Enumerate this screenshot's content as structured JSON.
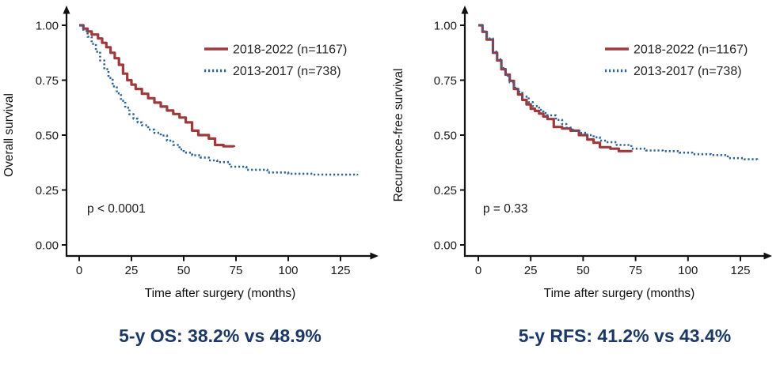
{
  "figure": {
    "background": "#ffffff",
    "axis_color": "#111111",
    "caption_color": "#1b3866"
  },
  "chart_data": [
    {
      "type": "line",
      "subtype": "kaplan-meier-step",
      "title": "",
      "xlabel": "Time after surgery (months)",
      "ylabel": "Overall survival",
      "xlim": [
        0,
        138
      ],
      "ylim": [
        0,
        1.0
      ],
      "xticks": [
        "0",
        "25",
        "50",
        "75",
        "100",
        "125"
      ],
      "xtick_values": [
        0,
        25,
        50,
        75,
        100,
        125
      ],
      "yticks": [
        "1.00",
        "0.75",
        "0.50",
        "0.25",
        "0.00"
      ],
      "ytick_values": [
        1.0,
        0.75,
        0.5,
        0.25,
        0.0
      ],
      "grid": false,
      "legend_position": "top-right",
      "annotation": "p < 0.0001",
      "caption": "5-y OS: 38.2% vs 48.9%",
      "series": [
        {
          "name": "2018-2022 (n=1167)",
          "color": "#9e3a3c",
          "style": "solid",
          "points": [
            [
              0,
              1.0
            ],
            [
              2,
              0.985
            ],
            [
              4,
              0.972
            ],
            [
              6,
              0.958
            ],
            [
              9,
              0.94
            ],
            [
              11,
              0.92
            ],
            [
              13,
              0.9
            ],
            [
              15,
              0.875
            ],
            [
              17,
              0.85
            ],
            [
              19,
              0.82
            ],
            [
              21,
              0.78
            ],
            [
              23,
              0.75
            ],
            [
              25,
              0.73
            ],
            [
              27,
              0.71
            ],
            [
              30,
              0.688
            ],
            [
              33,
              0.668
            ],
            [
              36,
              0.648
            ],
            [
              39,
              0.63
            ],
            [
              42,
              0.612
            ],
            [
              45,
              0.596
            ],
            [
              48,
              0.58
            ],
            [
              51,
              0.558
            ],
            [
              54,
              0.52
            ],
            [
              57,
              0.5
            ],
            [
              62,
              0.484
            ],
            [
              65,
              0.455
            ],
            [
              69,
              0.449
            ],
            [
              74,
              0.446
            ]
          ]
        },
        {
          "name": "2013-2017 (n=738)",
          "color": "#2f6399",
          "style": "dotted",
          "points": [
            [
              0,
              1.0
            ],
            [
              2,
              0.975
            ],
            [
              4,
              0.948
            ],
            [
              6,
              0.915
            ],
            [
              8,
              0.88
            ],
            [
              10,
              0.84
            ],
            [
              12,
              0.8
            ],
            [
              14,
              0.76
            ],
            [
              16,
              0.722
            ],
            [
              18,
              0.69
            ],
            [
              20,
              0.656
            ],
            [
              22,
              0.625
            ],
            [
              24,
              0.595
            ],
            [
              26,
              0.575
            ],
            [
              28,
              0.558
            ],
            [
              30,
              0.545
            ],
            [
              33,
              0.525
            ],
            [
              36,
              0.51
            ],
            [
              39,
              0.498
            ],
            [
              42,
              0.475
            ],
            [
              45,
              0.455
            ],
            [
              48,
              0.435
            ],
            [
              50,
              0.42
            ],
            [
              54,
              0.408
            ],
            [
              58,
              0.398
            ],
            [
              62,
              0.385
            ],
            [
              66,
              0.377
            ],
            [
              72,
              0.356
            ],
            [
              80,
              0.342
            ],
            [
              90,
              0.33
            ],
            [
              100,
              0.324
            ],
            [
              112,
              0.32
            ],
            [
              133,
              0.317
            ]
          ]
        }
      ]
    },
    {
      "type": "line",
      "subtype": "kaplan-meier-step",
      "title": "",
      "xlabel": "Time after surgery (months)",
      "ylabel": "Recurrence-free survival",
      "xlim": [
        0,
        138
      ],
      "ylim": [
        0,
        1.0
      ],
      "xticks": [
        "0",
        "25",
        "50",
        "75",
        "100",
        "125"
      ],
      "xtick_values": [
        0,
        25,
        50,
        75,
        100,
        125
      ],
      "yticks": [
        "1.00",
        "0.75",
        "0.50",
        "0.25",
        "0.00"
      ],
      "ytick_values": [
        1.0,
        0.75,
        0.5,
        0.25,
        0.0
      ],
      "grid": false,
      "legend_position": "top-right",
      "annotation": "p = 0.33",
      "caption": "5-y RFS: 41.2% vs 43.4%",
      "series": [
        {
          "name": "2018-2022 (n=1167)",
          "color": "#9e3a3c",
          "style": "solid",
          "points": [
            [
              0,
              1.0
            ],
            [
              2,
              0.97
            ],
            [
              4,
              0.935
            ],
            [
              7,
              0.875
            ],
            [
              9,
              0.84
            ],
            [
              11,
              0.8
            ],
            [
              13,
              0.775
            ],
            [
              15,
              0.747
            ],
            [
              17,
              0.71
            ],
            [
              19,
              0.685
            ],
            [
              21,
              0.66
            ],
            [
              23,
              0.64
            ],
            [
              25,
              0.62
            ],
            [
              27,
              0.61
            ],
            [
              29,
              0.598
            ],
            [
              31,
              0.585
            ],
            [
              33,
              0.573
            ],
            [
              36,
              0.537
            ],
            [
              40,
              0.53
            ],
            [
              44,
              0.52
            ],
            [
              48,
              0.5
            ],
            [
              52,
              0.48
            ],
            [
              55,
              0.465
            ],
            [
              58,
              0.445
            ],
            [
              63,
              0.438
            ],
            [
              67,
              0.427
            ],
            [
              73,
              0.423
            ]
          ]
        },
        {
          "name": "2013-2017 (n=738)",
          "color": "#2f6399",
          "style": "dotted",
          "points": [
            [
              0,
              1.0
            ],
            [
              2,
              0.972
            ],
            [
              4,
              0.94
            ],
            [
              7,
              0.88
            ],
            [
              9,
              0.845
            ],
            [
              11,
              0.805
            ],
            [
              13,
              0.77
            ],
            [
              15,
              0.74
            ],
            [
              17,
              0.715
            ],
            [
              19,
              0.697
            ],
            [
              21,
              0.675
            ],
            [
              24,
              0.65
            ],
            [
              26,
              0.632
            ],
            [
              29,
              0.615
            ],
            [
              31,
              0.6
            ],
            [
              33,
              0.59
            ],
            [
              37,
              0.569
            ],
            [
              40,
              0.55
            ],
            [
              42,
              0.534
            ],
            [
              45,
              0.52
            ],
            [
              49,
              0.51
            ],
            [
              52,
              0.5
            ],
            [
              55,
              0.49
            ],
            [
              58,
              0.475
            ],
            [
              61,
              0.468
            ],
            [
              66,
              0.455
            ],
            [
              73,
              0.438
            ],
            [
              80,
              0.43
            ],
            [
              88,
              0.427
            ],
            [
              96,
              0.42
            ],
            [
              102,
              0.413
            ],
            [
              111,
              0.409
            ],
            [
              119,
              0.395
            ],
            [
              127,
              0.39
            ],
            [
              133,
              0.388
            ]
          ]
        }
      ]
    }
  ]
}
